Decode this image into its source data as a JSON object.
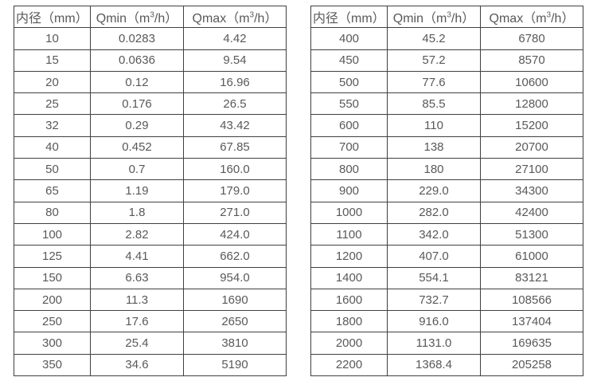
{
  "colors": {
    "background": "#ffffff",
    "border": "#404040",
    "text": "#595959"
  },
  "tables": [
    {
      "title": "small-diameter flow ranges",
      "headers": [
        {
          "text": "内径（mm）"
        },
        {
          "pre": "Qmin（m",
          "sup": "3",
          "post": "/h）"
        },
        {
          "pre": "Qmax（m",
          "sup": "3",
          "post": "/h）"
        }
      ],
      "rows": [
        [
          "10",
          "0.0283",
          "4.42"
        ],
        [
          "15",
          "0.0636",
          "9.54"
        ],
        [
          "20",
          "0.12",
          "16.96"
        ],
        [
          "25",
          "0.176",
          "26.5"
        ],
        [
          "32",
          "0.29",
          "43.42"
        ],
        [
          "40",
          "0.452",
          "67.85"
        ],
        [
          "50",
          "0.7",
          "160.0"
        ],
        [
          "65",
          "1.19",
          "179.0"
        ],
        [
          "80",
          "1.8",
          "271.0"
        ],
        [
          "100",
          "2.82",
          "424.0"
        ],
        [
          "125",
          "4.41",
          "662.0"
        ],
        [
          "150",
          "6.63",
          "954.0"
        ],
        [
          "200",
          "11.3",
          "1690"
        ],
        [
          "250",
          "17.6",
          "2650"
        ],
        [
          "300",
          "25.4",
          "3810"
        ],
        [
          "350",
          "34.6",
          "5190"
        ]
      ]
    },
    {
      "title": "large-diameter flow ranges",
      "headers": [
        {
          "text": "内径（mm）"
        },
        {
          "pre": "Qmin（m",
          "sup": "3",
          "post": "/h）"
        },
        {
          "pre": "Qmax（m",
          "sup": "3",
          "post": "/h）"
        }
      ],
      "rows": [
        [
          "400",
          "45.2",
          "6780"
        ],
        [
          "450",
          "57.2",
          "8570"
        ],
        [
          "500",
          "77.6",
          "10600"
        ],
        [
          "550",
          "85.5",
          "12800"
        ],
        [
          "600",
          "110",
          "15200"
        ],
        [
          "700",
          "138",
          "20700"
        ],
        [
          "800",
          "180",
          "27100"
        ],
        [
          "900",
          "229.0",
          "34300"
        ],
        [
          "1000",
          "282.0",
          "42400"
        ],
        [
          "1100",
          "342.0",
          "51300"
        ],
        [
          "1200",
          "407.0",
          "61000"
        ],
        [
          "1400",
          "554.1",
          "83121"
        ],
        [
          "1600",
          "732.7",
          "108566"
        ],
        [
          "1800",
          "916.0",
          "137404"
        ],
        [
          "2000",
          "1131.0",
          "169635"
        ],
        [
          "2200",
          "1368.4",
          "205258"
        ]
      ]
    }
  ]
}
